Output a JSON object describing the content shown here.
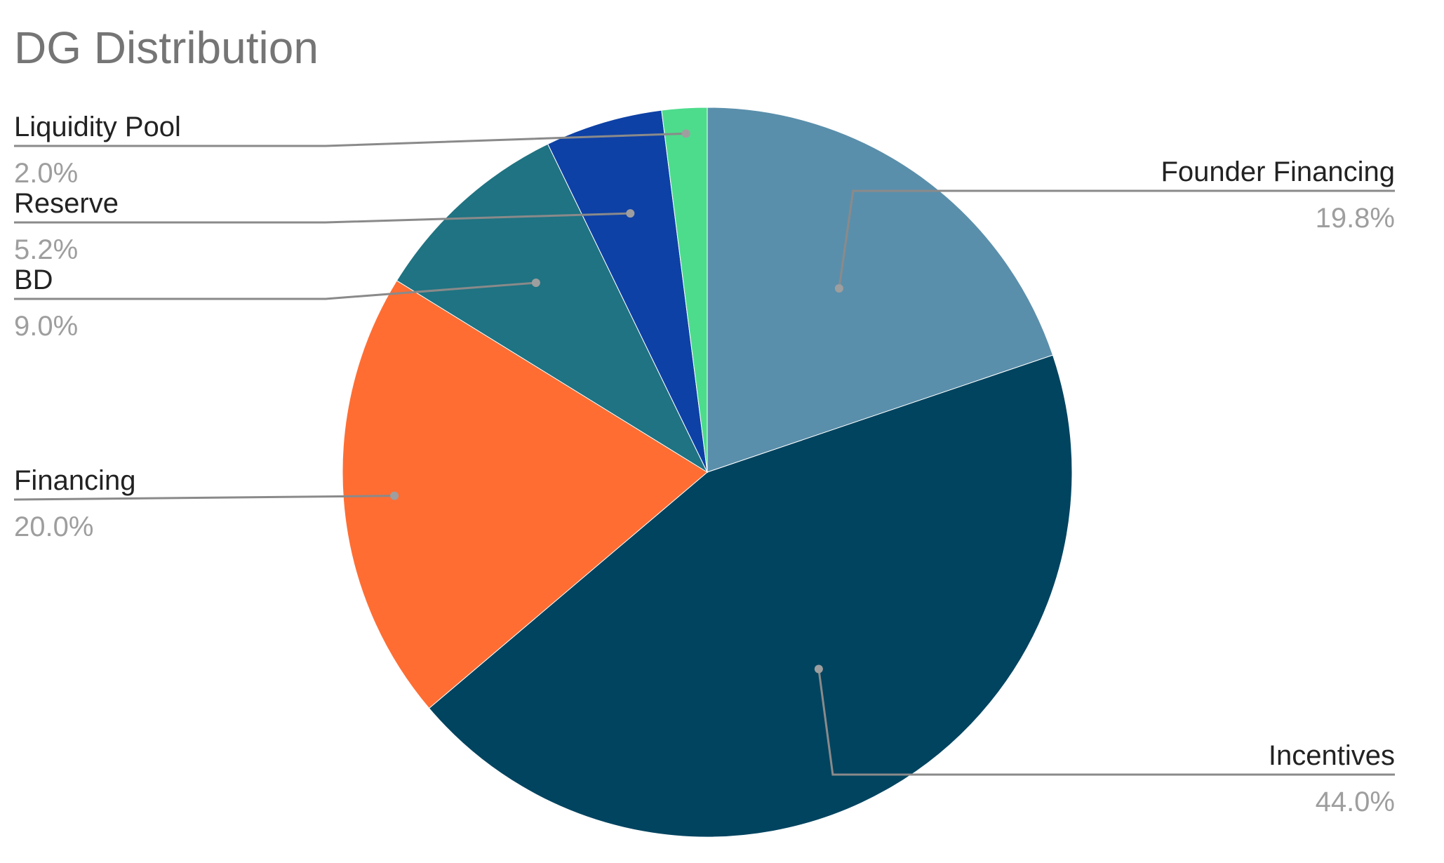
{
  "chart_data": {
    "type": "pie",
    "title": "DG Distribution",
    "start_angle_deg": 0,
    "direction": "clockwise",
    "slices": [
      {
        "label": "Founder Financing",
        "value": 19.8,
        "display": "19.8%",
        "color": "#5a8fab",
        "label_side": "right"
      },
      {
        "label": "Incentives",
        "value": 44.0,
        "display": "44.0%",
        "color": "#004460",
        "label_side": "right"
      },
      {
        "label": "Financing",
        "value": 20.0,
        "display": "20.0%",
        "color": "#ff6d33",
        "label_side": "left"
      },
      {
        "label": "BD",
        "value": 9.0,
        "display": "9.0%",
        "color": "#1f7382",
        "label_side": "left"
      },
      {
        "label": "Reserve",
        "value": 5.2,
        "display": "5.2%",
        "color": "#0e41a6",
        "label_side": "left"
      },
      {
        "label": "Liquidity Pool",
        "value": 2.0,
        "display": "2.0%",
        "color": "#4ddc8c",
        "label_side": "left"
      }
    ],
    "legend": "none",
    "label_style": "leader lines with name and percentage"
  }
}
